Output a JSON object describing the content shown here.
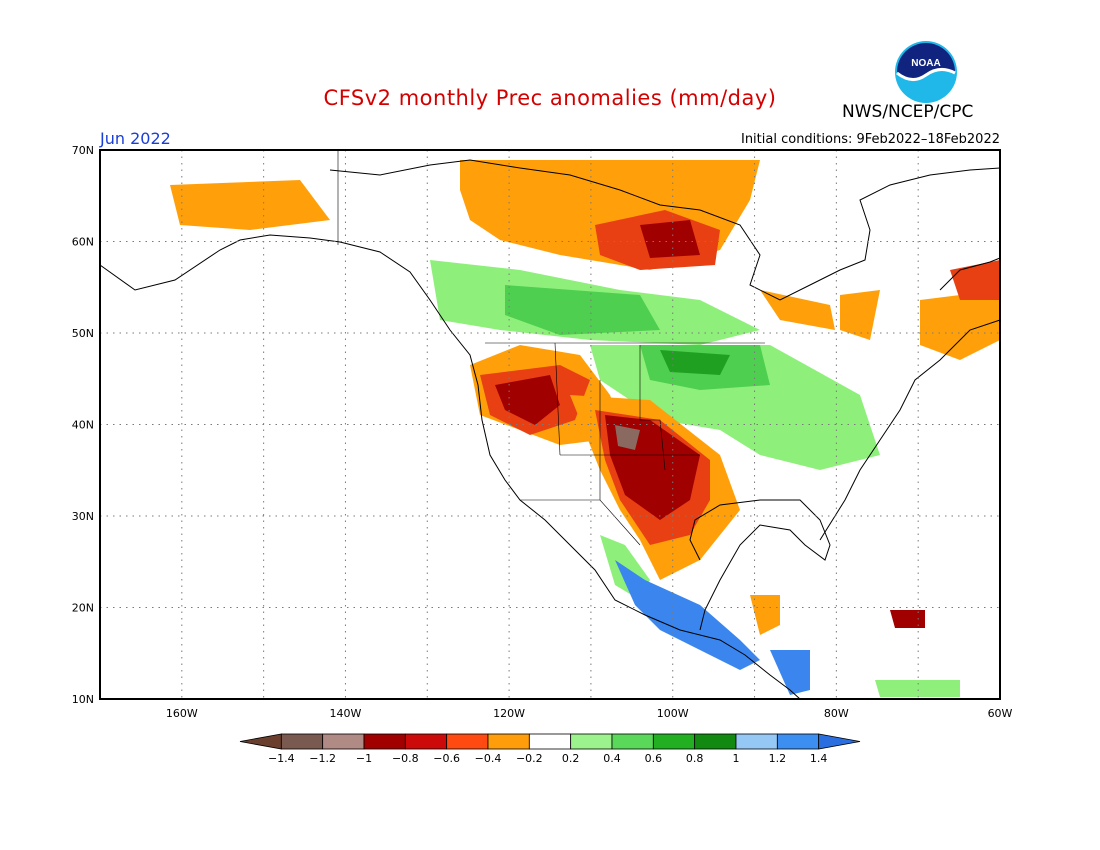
{
  "header": {
    "title": "CFSv2 monthly Prec anomalies (mm/day)",
    "agency": "NWS/NCEP/CPC",
    "logo_text": "NOAA",
    "month": "Jun 2022",
    "initial_conditions": "Initial conditions: 9Feb2022–18Feb2022"
  },
  "axes": {
    "lat_labels": [
      "70N",
      "60N",
      "50N",
      "40N",
      "30N",
      "20N",
      "10N"
    ],
    "lon_labels": [
      "160W",
      "140W",
      "120W",
      "100W",
      "80W",
      "60W"
    ]
  },
  "colorbar": {
    "labels": [
      "−1.4",
      "−1.2",
      "−1",
      "−0.8",
      "−0.6",
      "−0.4",
      "−0.2",
      "0.2",
      "0.4",
      "0.6",
      "0.8",
      "1",
      "1.2",
      "1.4"
    ],
    "colors": [
      "#6b3f2e",
      "#7a5a50",
      "#b08a84",
      "#a00000",
      "#cc0a0a",
      "#ff4a12",
      "#ff9e0a",
      "#ffffff",
      "#9cf28c",
      "#5ad85a",
      "#22b022",
      "#128a12",
      "#96c8f5",
      "#3c8ef0",
      "#2a6ee0"
    ]
  },
  "map_colors": {
    "ocean": "#ffffff",
    "coast": "#000000",
    "strong_dry": "#a00000",
    "dry": "#e84012",
    "mild_dry": "#ffa00a",
    "very_dry": "#8a6a60",
    "mild_wet": "#8ef07a",
    "wet": "#4fcf4f",
    "very_wet": "#20a020",
    "blue_wet": "#3a86ee",
    "light_blue": "#96c8f5"
  }
}
